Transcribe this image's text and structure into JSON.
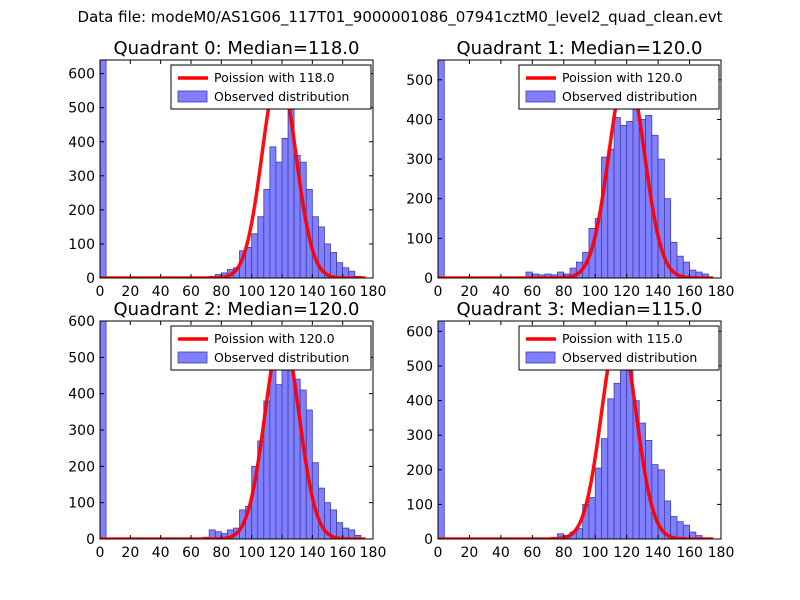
{
  "suptitle": "Data file: modeM0/AS1G06_117T01_9000001086_07941cztM0_level2_quad_clean.evt",
  "colors": {
    "bar_fill": "#7f7fff",
    "bar_edge": "#3f3fa0",
    "fit_line": "#ff0000",
    "frame": "#000000"
  },
  "legend_labels": {
    "observed": "Observed distribution"
  },
  "chart_data": [
    {
      "type": "bar",
      "title": "Quadrant 0: Median=118.0",
      "fit_label": "Poission with 118.0",
      "median": 118.0,
      "xlim": [
        0,
        180
      ],
      "ylim": [
        0,
        640
      ],
      "xticks": [
        0,
        20,
        40,
        60,
        80,
        100,
        120,
        140,
        160,
        180
      ],
      "yticks": [
        0,
        100,
        200,
        300,
        400,
        500,
        600
      ],
      "bin_width": 4,
      "bins": [
        [
          0,
          640
        ],
        [
          72,
          5
        ],
        [
          76,
          10
        ],
        [
          80,
          15
        ],
        [
          84,
          25
        ],
        [
          88,
          30
        ],
        [
          92,
          80
        ],
        [
          96,
          90
        ],
        [
          100,
          130
        ],
        [
          104,
          180
        ],
        [
          108,
          260
        ],
        [
          112,
          385
        ],
        [
          116,
          340
        ],
        [
          120,
          410
        ],
        [
          124,
          555
        ],
        [
          128,
          360
        ],
        [
          132,
          340
        ],
        [
          136,
          260
        ],
        [
          140,
          180
        ],
        [
          144,
          150
        ],
        [
          148,
          100
        ],
        [
          152,
          75
        ],
        [
          156,
          45
        ],
        [
          160,
          30
        ],
        [
          164,
          20
        ],
        [
          168,
          5
        ]
      ],
      "fit_peak": 605
    },
    {
      "type": "bar",
      "title": "Quadrant 1: Median=120.0",
      "fit_label": "Poission with 120.0",
      "median": 120.0,
      "xlim": [
        0,
        180
      ],
      "ylim": [
        0,
        550
      ],
      "xticks": [
        0,
        20,
        40,
        60,
        80,
        100,
        120,
        140,
        160,
        180
      ],
      "yticks": [
        0,
        100,
        200,
        300,
        400,
        500
      ],
      "bin_width": 4,
      "bins": [
        [
          0,
          550
        ],
        [
          56,
          15
        ],
        [
          60,
          10
        ],
        [
          64,
          8
        ],
        [
          68,
          10
        ],
        [
          72,
          8
        ],
        [
          76,
          15
        ],
        [
          80,
          10
        ],
        [
          84,
          25
        ],
        [
          88,
          40
        ],
        [
          92,
          65
        ],
        [
          96,
          125
        ],
        [
          100,
          150
        ],
        [
          104,
          305
        ],
        [
          108,
          325
        ],
        [
          112,
          405
        ],
        [
          116,
          385
        ],
        [
          120,
          395
        ],
        [
          124,
          505
        ],
        [
          128,
          400
        ],
        [
          132,
          410
        ],
        [
          136,
          360
        ],
        [
          140,
          300
        ],
        [
          144,
          200
        ],
        [
          148,
          90
        ],
        [
          152,
          55
        ],
        [
          156,
          40
        ],
        [
          160,
          20
        ],
        [
          164,
          15
        ],
        [
          168,
          10
        ]
      ],
      "fit_peak": 525
    },
    {
      "type": "bar",
      "title": "Quadrant 2: Median=120.0",
      "fit_label": "Poission with 120.0",
      "median": 120.0,
      "xlim": [
        0,
        180
      ],
      "ylim": [
        0,
        600
      ],
      "xticks": [
        0,
        20,
        40,
        60,
        80,
        100,
        120,
        140,
        160,
        180
      ],
      "yticks": [
        0,
        100,
        200,
        300,
        400,
        500,
        600
      ],
      "bin_width": 4,
      "bins": [
        [
          0,
          600
        ],
        [
          68,
          5
        ],
        [
          72,
          25
        ],
        [
          76,
          20
        ],
        [
          80,
          15
        ],
        [
          84,
          25
        ],
        [
          88,
          30
        ],
        [
          92,
          80
        ],
        [
          96,
          90
        ],
        [
          100,
          200
        ],
        [
          104,
          270
        ],
        [
          108,
          380
        ],
        [
          112,
          470
        ],
        [
          116,
          425
        ],
        [
          120,
          525
        ],
        [
          124,
          510
        ],
        [
          128,
          440
        ],
        [
          132,
          410
        ],
        [
          136,
          355
        ],
        [
          140,
          210
        ],
        [
          144,
          140
        ],
        [
          148,
          100
        ],
        [
          152,
          80
        ],
        [
          156,
          45
        ],
        [
          160,
          30
        ],
        [
          164,
          25
        ],
        [
          168,
          10
        ]
      ],
      "fit_peak": 570
    },
    {
      "type": "bar",
      "title": "Quadrant 3: Median=115.0",
      "fit_label": "Poission with 115.0",
      "median": 115.0,
      "xlim": [
        0,
        180
      ],
      "ylim": [
        0,
        630
      ],
      "xticks": [
        0,
        20,
        40,
        60,
        80,
        100,
        120,
        140,
        160,
        180
      ],
      "yticks": [
        0,
        100,
        200,
        300,
        400,
        500,
        600
      ],
      "bin_width": 4,
      "bins": [
        [
          0,
          630
        ],
        [
          72,
          5
        ],
        [
          76,
          15
        ],
        [
          80,
          10
        ],
        [
          84,
          20
        ],
        [
          88,
          30
        ],
        [
          92,
          100
        ],
        [
          96,
          120
        ],
        [
          100,
          205
        ],
        [
          104,
          290
        ],
        [
          108,
          405
        ],
        [
          112,
          450
        ],
        [
          116,
          550
        ],
        [
          120,
          600
        ],
        [
          124,
          400
        ],
        [
          128,
          335
        ],
        [
          132,
          285
        ],
        [
          136,
          215
        ],
        [
          140,
          200
        ],
        [
          144,
          110
        ],
        [
          148,
          65
        ],
        [
          152,
          50
        ],
        [
          156,
          40
        ],
        [
          160,
          20
        ],
        [
          164,
          10
        ]
      ],
      "fit_peak": 605
    }
  ]
}
